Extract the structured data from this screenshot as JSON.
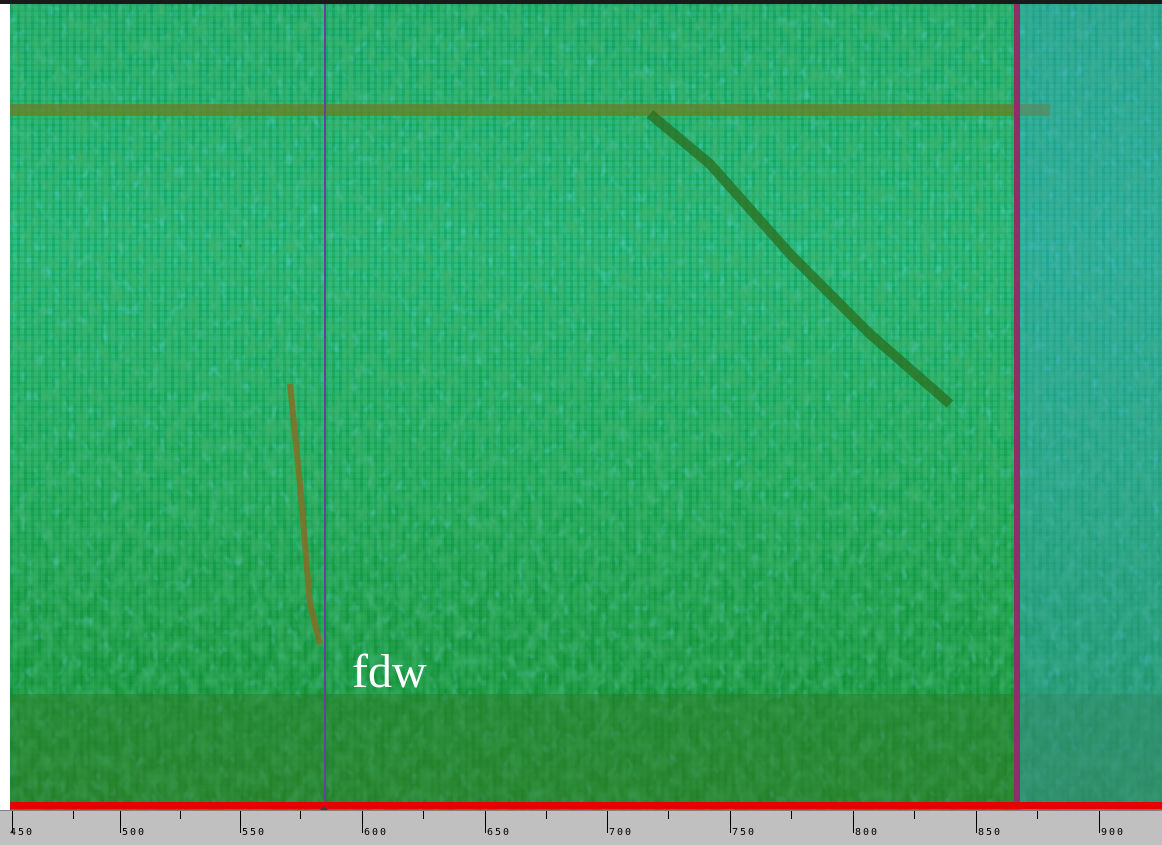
{
  "overlay_label": "fdw",
  "colors": {
    "background_low": "#2bbf8a",
    "energy_mid": "#1f9a45",
    "energy_high": "#8a6a20",
    "baseline": "#e60000",
    "cursor": "#6b3fa0",
    "marker": "#8e2f6a",
    "ruler_bg": "#c0c0c0"
  },
  "ruler": {
    "tick_labels": [
      "450",
      "500",
      "550",
      "600",
      "650",
      "700",
      "750",
      "800",
      "850",
      "900"
    ]
  }
}
